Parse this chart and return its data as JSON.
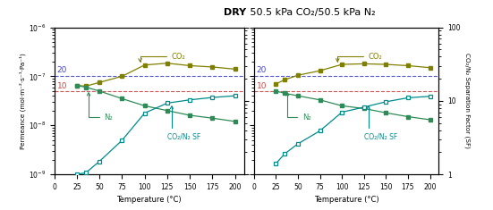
{
  "title_bold": "DRY",
  "title_rest": " 50.5 kPa CO₂/50.5 kPa N₂",
  "xlabel": "Temperature (°C)",
  "ylabel_left": "Permeance (mol·m⁻²·s⁻¹·Pa⁻¹)",
  "ylabel_right": "CO₂/N₂ Separation Factor (SF)",
  "xlim": [
    0,
    210
  ],
  "ylim_left": [
    1e-09,
    1e-06
  ],
  "ylim_right": [
    1,
    100
  ],
  "hline_blue_y": 1e-07,
  "hline_red_y": 5e-08,
  "co2_color": "#808000",
  "n2_color": "#2e8b57",
  "sf_color": "#008b8b",
  "hline_blue_color": "#4444cc",
  "hline_red_color": "#cc4444",
  "plot1": {
    "temp": [
      25,
      35,
      50,
      75,
      100,
      125,
      150,
      175,
      200
    ],
    "co2_perm": [
      6.5e-08,
      6.3e-08,
      7.5e-08,
      1e-07,
      1.7e-07,
      1.85e-07,
      1.65e-07,
      1.55e-07,
      1.4e-07
    ],
    "n2_perm": [
      6.5e-08,
      6e-08,
      5e-08,
      3.5e-08,
      2.5e-08,
      2e-08,
      1.6e-08,
      1.4e-08,
      1.2e-08
    ],
    "sf": [
      1.0,
      1.05,
      1.5,
      2.9,
      6.8,
      9.3,
      10.3,
      11.1,
      11.7
    ]
  },
  "plot2": {
    "temp": [
      25,
      35,
      50,
      75,
      100,
      125,
      150,
      175,
      200
    ],
    "co2_perm": [
      7e-08,
      8.5e-08,
      1.05e-07,
      1.3e-07,
      1.75e-07,
      1.8e-07,
      1.75e-07,
      1.65e-07,
      1.5e-07
    ],
    "n2_perm": [
      5e-08,
      4.5e-08,
      4e-08,
      3.3e-08,
      2.5e-08,
      2.2e-08,
      1.8e-08,
      1.5e-08,
      1.3e-08
    ],
    "sf": [
      1.4,
      1.9,
      2.6,
      3.9,
      7.0,
      8.2,
      9.7,
      11.0,
      11.5
    ]
  }
}
